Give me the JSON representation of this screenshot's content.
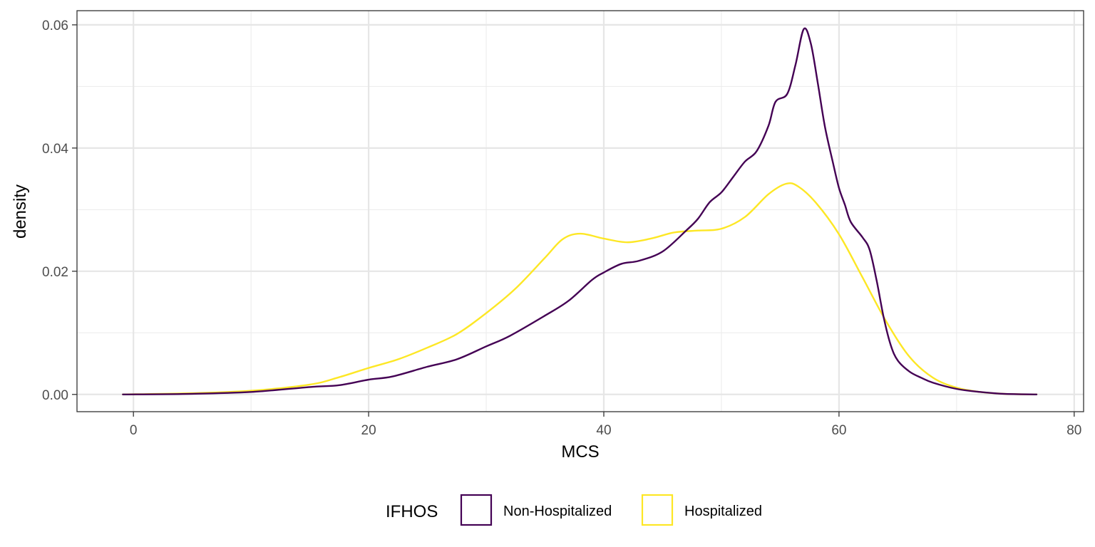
{
  "chart_data": {
    "type": "line",
    "title": "",
    "xlabel": "MCS",
    "ylabel": "density",
    "xlim": [
      -4.8,
      80.8
    ],
    "ylim": [
      -0.0028,
      0.0623
    ],
    "x_ticks": [
      0,
      20,
      40,
      60,
      80
    ],
    "x_tick_labels": [
      "0",
      "20",
      "40",
      "60",
      "80"
    ],
    "y_ticks": [
      0.0,
      0.02,
      0.04,
      0.06
    ],
    "y_tick_labels": [
      "0.00",
      "0.02",
      "0.04",
      "0.06"
    ],
    "grid": true,
    "legend": {
      "title": "IFHOS",
      "position": "bottom",
      "entries": [
        "Non-Hospitalized",
        "Hospitalized"
      ]
    },
    "series": [
      {
        "name": "Non-Hospitalized",
        "color": "#440154",
        "points": [
          [
            -0.9,
            0.0
          ],
          [
            5,
            0.0001
          ],
          [
            10,
            0.0004
          ],
          [
            15,
            0.0012
          ],
          [
            17.5,
            0.0015
          ],
          [
            20,
            0.0024
          ],
          [
            22,
            0.0029
          ],
          [
            25,
            0.0045
          ],
          [
            27.5,
            0.0057
          ],
          [
            30,
            0.0078
          ],
          [
            32,
            0.0095
          ],
          [
            35,
            0.0128
          ],
          [
            37,
            0.0152
          ],
          [
            39,
            0.0186
          ],
          [
            40,
            0.0198
          ],
          [
            41.5,
            0.0212
          ],
          [
            43,
            0.0217
          ],
          [
            45,
            0.0232
          ],
          [
            47,
            0.0266
          ],
          [
            48,
            0.0285
          ],
          [
            49,
            0.0312
          ],
          [
            50,
            0.0328
          ],
          [
            51,
            0.0353
          ],
          [
            52,
            0.0378
          ],
          [
            53,
            0.0395
          ],
          [
            54,
            0.0436
          ],
          [
            54.6,
            0.0475
          ],
          [
            55.6,
            0.0488
          ],
          [
            56.3,
            0.0535
          ],
          [
            57.0,
            0.0593
          ],
          [
            57.6,
            0.057
          ],
          [
            58.2,
            0.0505
          ],
          [
            58.8,
            0.0435
          ],
          [
            59.5,
            0.0375
          ],
          [
            60,
            0.0335
          ],
          [
            60.5,
            0.0308
          ],
          [
            61,
            0.028
          ],
          [
            62,
            0.0255
          ],
          [
            62.6,
            0.0235
          ],
          [
            63.2,
            0.0185
          ],
          [
            63.8,
            0.0125
          ],
          [
            64.4,
            0.008
          ],
          [
            65,
            0.0055
          ],
          [
            66,
            0.0037
          ],
          [
            67,
            0.0027
          ],
          [
            68,
            0.0019
          ],
          [
            70,
            0.0009
          ],
          [
            72,
            0.0004
          ],
          [
            74,
            0.0001
          ],
          [
            76.8,
            0.0
          ]
        ]
      },
      {
        "name": "Hospitalized",
        "color": "#FDE725",
        "points": [
          [
            -0.9,
            0.0
          ],
          [
            5,
            0.0002
          ],
          [
            10,
            0.0006
          ],
          [
            15,
            0.0016
          ],
          [
            17.5,
            0.0028
          ],
          [
            20,
            0.0043
          ],
          [
            22.5,
            0.0057
          ],
          [
            25,
            0.0076
          ],
          [
            27.5,
            0.0098
          ],
          [
            30,
            0.0132
          ],
          [
            32.5,
            0.0172
          ],
          [
            35,
            0.0222
          ],
          [
            36.5,
            0.0252
          ],
          [
            38,
            0.0261
          ],
          [
            40,
            0.0253
          ],
          [
            42,
            0.0247
          ],
          [
            44,
            0.0253
          ],
          [
            46,
            0.0263
          ],
          [
            48,
            0.0266
          ],
          [
            50,
            0.0269
          ],
          [
            52,
            0.0288
          ],
          [
            54,
            0.0325
          ],
          [
            55.5,
            0.0342
          ],
          [
            56.5,
            0.0338
          ],
          [
            58,
            0.0312
          ],
          [
            60,
            0.026
          ],
          [
            62,
            0.019
          ],
          [
            64,
            0.0119
          ],
          [
            66,
            0.0061
          ],
          [
            68,
            0.0027
          ],
          [
            70,
            0.0011
          ],
          [
            72,
            0.0004
          ],
          [
            74,
            0.0001
          ],
          [
            76.8,
            0.0
          ]
        ]
      }
    ]
  }
}
